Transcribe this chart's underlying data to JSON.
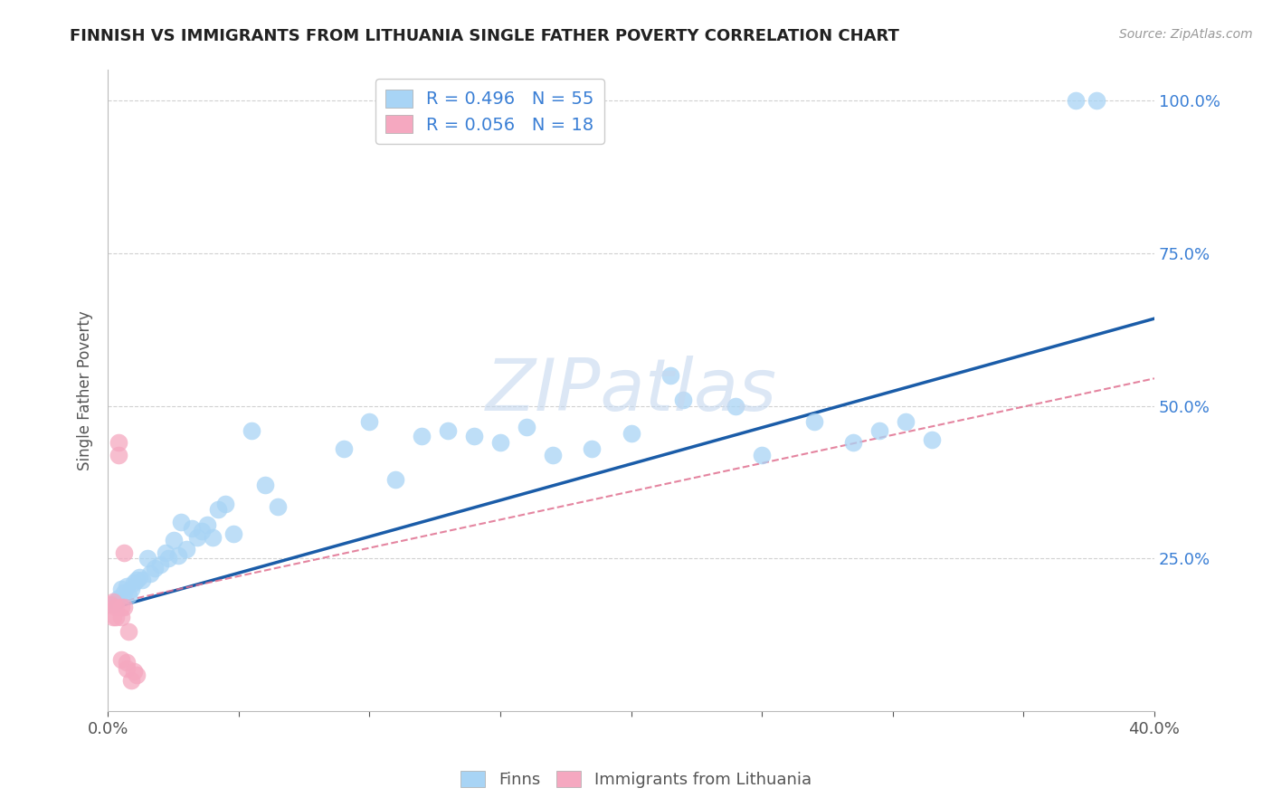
{
  "title": "FINNISH VS IMMIGRANTS FROM LITHUANIA SINGLE FATHER POVERTY CORRELATION CHART",
  "source": "Source: ZipAtlas.com",
  "ylabel": "Single Father Poverty",
  "xlim": [
    0.0,
    0.4
  ],
  "ylim": [
    0.0,
    1.05
  ],
  "xticks": [
    0.0,
    0.05,
    0.1,
    0.15,
    0.2,
    0.25,
    0.3,
    0.35,
    0.4
  ],
  "xtick_labels": [
    "0.0%",
    "",
    "",
    "",
    "",
    "",
    "",
    "",
    "40.0%"
  ],
  "yticks": [
    0.25,
    0.5,
    0.75,
    1.0
  ],
  "ytick_labels": [
    "25.0%",
    "50.0%",
    "75.0%",
    "100.0%"
  ],
  "finns_color": "#a8d4f5",
  "lith_color": "#f5a8c0",
  "finns_line_color": "#1a5ca8",
  "lith_line_color": "#e07090",
  "watermark_color": "#d0dff0",
  "finns_x": [
    0.002,
    0.003,
    0.004,
    0.005,
    0.006,
    0.007,
    0.008,
    0.009,
    0.01,
    0.011,
    0.012,
    0.013,
    0.015,
    0.016,
    0.018,
    0.02,
    0.022,
    0.023,
    0.025,
    0.027,
    0.028,
    0.03,
    0.032,
    0.034,
    0.036,
    0.038,
    0.04,
    0.042,
    0.045,
    0.048,
    0.055,
    0.06,
    0.065,
    0.09,
    0.1,
    0.11,
    0.12,
    0.13,
    0.14,
    0.15,
    0.16,
    0.17,
    0.185,
    0.2,
    0.215,
    0.22,
    0.24,
    0.25,
    0.27,
    0.285,
    0.295,
    0.305,
    0.315,
    0.37,
    0.378
  ],
  "finns_y": [
    0.175,
    0.18,
    0.185,
    0.2,
    0.195,
    0.205,
    0.19,
    0.2,
    0.21,
    0.215,
    0.22,
    0.215,
    0.25,
    0.225,
    0.235,
    0.24,
    0.26,
    0.25,
    0.28,
    0.255,
    0.31,
    0.265,
    0.3,
    0.285,
    0.295,
    0.305,
    0.285,
    0.33,
    0.34,
    0.29,
    0.46,
    0.37,
    0.335,
    0.43,
    0.475,
    0.38,
    0.45,
    0.46,
    0.45,
    0.44,
    0.465,
    0.42,
    0.43,
    0.455,
    0.55,
    0.51,
    0.5,
    0.42,
    0.475,
    0.44,
    0.46,
    0.475,
    0.445,
    1.0,
    1.0
  ],
  "lith_x": [
    0.001,
    0.002,
    0.002,
    0.003,
    0.003,
    0.004,
    0.004,
    0.005,
    0.005,
    0.005,
    0.006,
    0.006,
    0.007,
    0.007,
    0.008,
    0.009,
    0.01,
    0.011
  ],
  "lith_y": [
    0.175,
    0.18,
    0.155,
    0.17,
    0.155,
    0.42,
    0.44,
    0.17,
    0.155,
    0.085,
    0.17,
    0.26,
    0.08,
    0.07,
    0.13,
    0.05,
    0.065,
    0.06
  ],
  "finns_line_x0": 0.0,
  "finns_line_x1": 0.4,
  "finns_line_y0": 0.167,
  "finns_line_y1": 0.643,
  "lith_line_x0": 0.0,
  "lith_line_x1": 0.4,
  "lith_line_y0": 0.175,
  "lith_line_y1": 0.545
}
